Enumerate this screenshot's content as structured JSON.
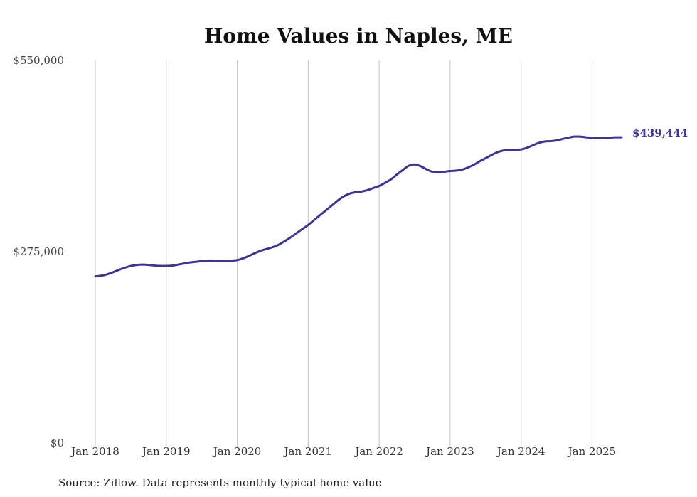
{
  "chart_data": {
    "type": "line",
    "title": "Home Values in Naples, ME",
    "source_note": "Source: Zillow. Data represents monthly typical home value",
    "xlabel": "",
    "ylabel": "",
    "ylim": [
      0,
      550000
    ],
    "yticks": [
      {
        "value": 0,
        "label": "$0"
      },
      {
        "value": 275000,
        "label": "$275,000"
      },
      {
        "value": 550000,
        "label": "$550,000"
      }
    ],
    "xticks": [
      {
        "date": "2018-01",
        "label": "Jan 2018"
      },
      {
        "date": "2019-01",
        "label": "Jan 2019"
      },
      {
        "date": "2020-01",
        "label": "Jan 2020"
      },
      {
        "date": "2021-01",
        "label": "Jan 2021"
      },
      {
        "date": "2022-01",
        "label": "Jan 2022"
      },
      {
        "date": "2023-01",
        "label": "Jan 2023"
      },
      {
        "date": "2024-01",
        "label": "Jan 2024"
      },
      {
        "date": "2025-01",
        "label": "Jan 2025"
      }
    ],
    "xlim": [
      "2018-01",
      "2025-06"
    ],
    "grid": "vertical",
    "legend": "none",
    "series": [
      {
        "color": "#3a3596",
        "end_label": "$439,444",
        "points": [
          [
            "2018-01",
            239500
          ],
          [
            "2018-02",
            240500
          ],
          [
            "2018-03",
            242500
          ],
          [
            "2018-04",
            245500
          ],
          [
            "2018-05",
            249000
          ],
          [
            "2018-06",
            252000
          ],
          [
            "2018-07",
            254500
          ],
          [
            "2018-08",
            256000
          ],
          [
            "2018-09",
            256500
          ],
          [
            "2018-10",
            256000
          ],
          [
            "2018-11",
            255000
          ],
          [
            "2018-12",
            254500
          ],
          [
            "2019-01",
            254500
          ],
          [
            "2019-02",
            255000
          ],
          [
            "2019-03",
            256500
          ],
          [
            "2019-04",
            258000
          ],
          [
            "2019-05",
            259500
          ],
          [
            "2019-06",
            260500
          ],
          [
            "2019-07",
            261500
          ],
          [
            "2019-08",
            262000
          ],
          [
            "2019-09",
            262000
          ],
          [
            "2019-10",
            261800
          ],
          [
            "2019-11",
            261500
          ],
          [
            "2019-12",
            262000
          ],
          [
            "2020-01",
            263000
          ],
          [
            "2020-02",
            265500
          ],
          [
            "2020-03",
            269000
          ],
          [
            "2020-04",
            273000
          ],
          [
            "2020-05",
            276500
          ],
          [
            "2020-06",
            279000
          ],
          [
            "2020-07",
            281500
          ],
          [
            "2020-08",
            285000
          ],
          [
            "2020-09",
            290000
          ],
          [
            "2020-10",
            295500
          ],
          [
            "2020-11",
            301500
          ],
          [
            "2020-12",
            307500
          ],
          [
            "2021-01",
            313500
          ],
          [
            "2021-02",
            320500
          ],
          [
            "2021-03",
            327500
          ],
          [
            "2021-04",
            334500
          ],
          [
            "2021-05",
            341500
          ],
          [
            "2021-06",
            348500
          ],
          [
            "2021-07",
            354500
          ],
          [
            "2021-08",
            358500
          ],
          [
            "2021-09",
            360500
          ],
          [
            "2021-10",
            361500
          ],
          [
            "2021-11",
            363500
          ],
          [
            "2021-12",
            366500
          ],
          [
            "2022-01",
            369500
          ],
          [
            "2022-02",
            374000
          ],
          [
            "2022-03",
            379000
          ],
          [
            "2022-04",
            386000
          ],
          [
            "2022-05",
            392500
          ],
          [
            "2022-06",
            398500
          ],
          [
            "2022-07",
            400500
          ],
          [
            "2022-08",
            398000
          ],
          [
            "2022-09",
            393500
          ],
          [
            "2022-10",
            390000
          ],
          [
            "2022-11",
            389000
          ],
          [
            "2022-12",
            390000
          ],
          [
            "2023-01",
            391000
          ],
          [
            "2023-02",
            391500
          ],
          [
            "2023-03",
            393000
          ],
          [
            "2023-04",
            396000
          ],
          [
            "2023-05",
            400000
          ],
          [
            "2023-06",
            405000
          ],
          [
            "2023-07",
            409500
          ],
          [
            "2023-08",
            414000
          ],
          [
            "2023-09",
            418000
          ],
          [
            "2023-10",
            420500
          ],
          [
            "2023-11",
            421500
          ],
          [
            "2023-12",
            421500
          ],
          [
            "2024-01",
            422000
          ],
          [
            "2024-02",
            424500
          ],
          [
            "2024-03",
            428000
          ],
          [
            "2024-04",
            431500
          ],
          [
            "2024-05",
            433500
          ],
          [
            "2024-06",
            434000
          ],
          [
            "2024-07",
            435000
          ],
          [
            "2024-08",
            437000
          ],
          [
            "2024-09",
            439000
          ],
          [
            "2024-10",
            440500
          ],
          [
            "2024-11",
            440500
          ],
          [
            "2024-12",
            439500
          ],
          [
            "2025-01",
            438500
          ],
          [
            "2025-02",
            438000
          ],
          [
            "2025-03",
            438500
          ],
          [
            "2025-04",
            439000
          ],
          [
            "2025-05",
            439500
          ],
          [
            "2025-06",
            439444
          ]
        ]
      }
    ]
  }
}
